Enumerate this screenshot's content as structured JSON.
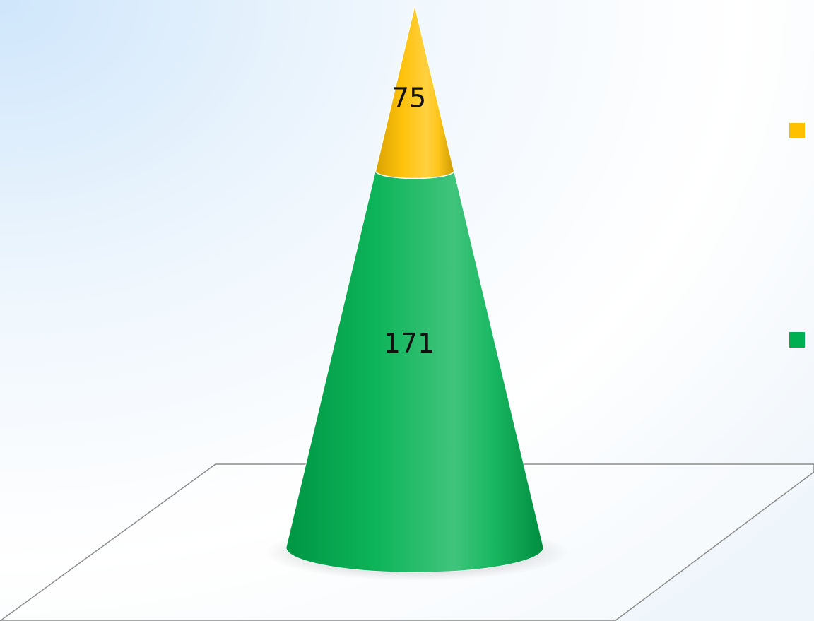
{
  "chart_data": {
    "type": "cone",
    "series": [
      {
        "color": "#00b050",
        "values": [
          171
        ]
      },
      {
        "color": "#ffc000",
        "values": [
          75
        ]
      }
    ]
  }
}
